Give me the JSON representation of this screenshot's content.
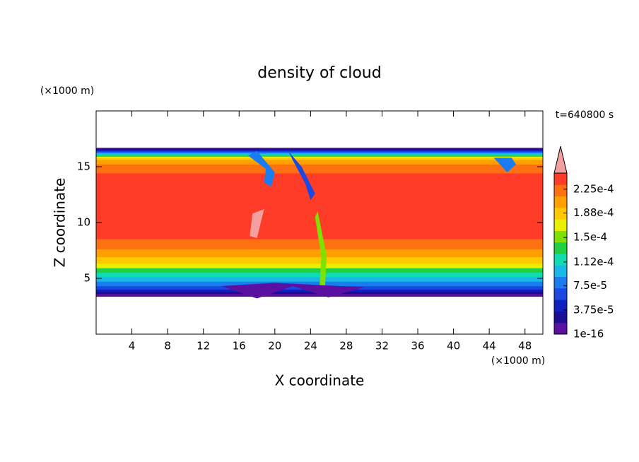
{
  "chart_data": {
    "type": "contour",
    "title": "density of cloud",
    "x_label": "X coordinate",
    "y_label": "Z coordinate",
    "x_unit": "(×1000 m)",
    "y_unit": "(×1000 m)",
    "annotation": "t=640800 s",
    "xlim": [
      0,
      50
    ],
    "ylim": [
      0,
      20
    ],
    "xticks": [
      4,
      8,
      12,
      16,
      20,
      24,
      28,
      32,
      36,
      40,
      44,
      48
    ],
    "yticks": [
      5,
      10,
      15
    ],
    "colorbar": {
      "clim": [
        1e-16,
        0.00025
      ],
      "ticks": [
        {
          "value": 1e-16,
          "label": "1e-16"
        },
        {
          "value": 3.75e-05,
          "label": "3.75e-5"
        },
        {
          "value": 7.5e-05,
          "label": "7.5e-5"
        },
        {
          "value": 0.000112,
          "label": "1.12e-4"
        },
        {
          "value": 0.00015,
          "label": "1.5e-4"
        },
        {
          "value": 0.000188,
          "label": "1.88e-4"
        },
        {
          "value": 0.000225,
          "label": "2.25e-4"
        }
      ],
      "colors": [
        "#5a10a0",
        "#1c0c96",
        "#1020c0",
        "#1a48e0",
        "#1a7cf0",
        "#18b8e8",
        "#10dcb0",
        "#20d040",
        "#80e000",
        "#e8f000",
        "#ffc800",
        "#ffa000",
        "#ff7010",
        "#ff3c28"
      ],
      "extend_color": "#f4a0a0"
    }
  }
}
